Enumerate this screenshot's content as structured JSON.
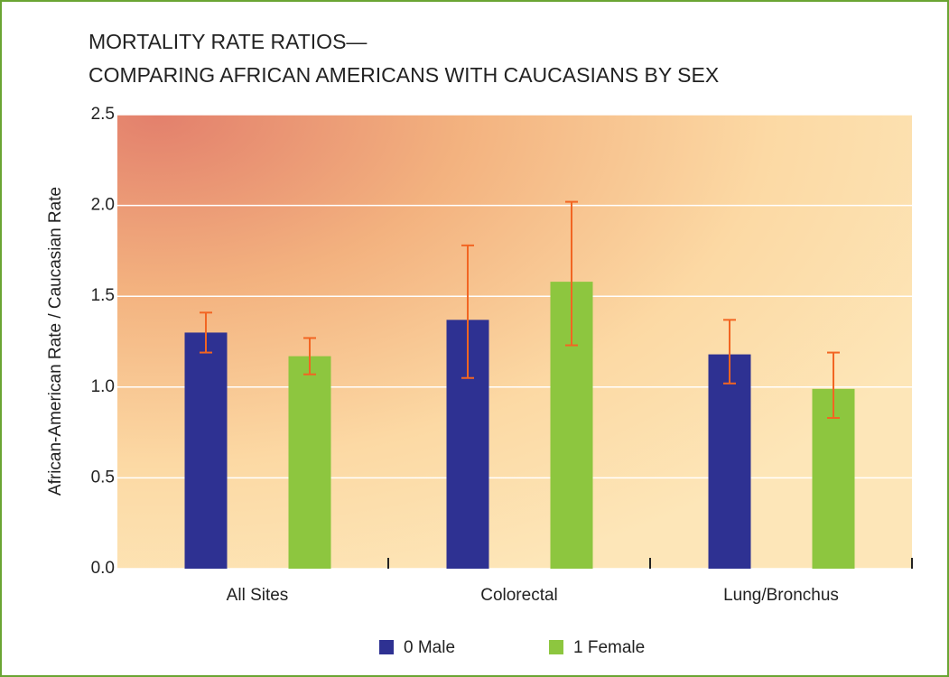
{
  "chart_data": {
    "type": "bar",
    "title": "MORTALITY RATE RATIOS—",
    "subtitle": "COMPARING AFRICAN AMERICANS WITH CAUCASIANS BY SEX",
    "y_label": "African-American Rate / Caucasian Rate",
    "categories": [
      "All Sites",
      "Colorectal",
      "Lung/Bronchus"
    ],
    "series": [
      {
        "name": "0 Male",
        "color": "#2e3192",
        "values": [
          1.3,
          1.37,
          1.18
        ],
        "ci_low": [
          1.19,
          1.05,
          1.02
        ],
        "ci_high": [
          1.41,
          1.78,
          1.37
        ]
      },
      {
        "name": "1 Female",
        "color": "#8dc63f",
        "values": [
          1.17,
          1.58,
          0.99
        ],
        "ci_low": [
          1.07,
          1.23,
          0.83
        ],
        "ci_high": [
          1.27,
          2.02,
          1.19
        ]
      }
    ],
    "error_color": "#f26522",
    "ylim": [
      0,
      2.5
    ],
    "yticks": [
      {
        "value": 0,
        "label": "0.0"
      },
      0.5,
      {
        "value": 1,
        "label": "1.0"
      },
      1.5,
      {
        "value": 2,
        "label": "2.0"
      },
      2.5
    ],
    "grid": true
  }
}
